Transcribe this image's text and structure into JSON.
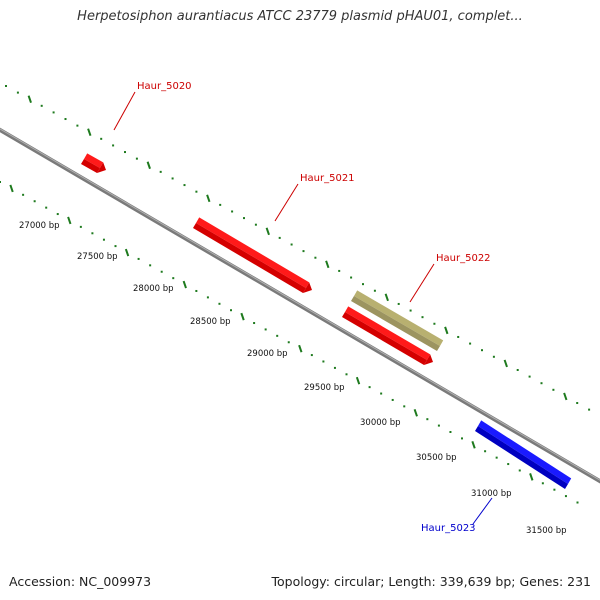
{
  "title": "Herpetosiphon aurantiacus ATCC 23779 plasmid pHAU01, complet...",
  "footer": {
    "accession": "Accession: NC_009973",
    "summary": "Topology: circular; Length: 339,639 bp; Genes: 231"
  },
  "colors": {
    "backbone": "#7a7a7a",
    "tick": "#1e7a1e",
    "forward_gene": "#ff1a1a",
    "reverse_gene": "#1a1aff",
    "rna_gene": "#b8b070",
    "forward_label": "#cc0000",
    "reverse_label": "#0000cc"
  },
  "ticks": [
    {
      "label": "27000 bp"
    },
    {
      "label": "27500 bp"
    },
    {
      "label": "28000 bp"
    },
    {
      "label": "28500 bp"
    },
    {
      "label": "29000 bp"
    },
    {
      "label": "29500 bp"
    },
    {
      "label": "30000 bp"
    },
    {
      "label": "30500 bp"
    },
    {
      "label": "31000 bp"
    },
    {
      "label": "31500 bp"
    }
  ],
  "genes": [
    {
      "name": "Haur_5020",
      "strand": "forward"
    },
    {
      "name": "Haur_5021",
      "strand": "forward"
    },
    {
      "name": "Haur_5022",
      "strand": "forward"
    },
    {
      "name": "Haur_5023",
      "strand": "reverse"
    }
  ]
}
